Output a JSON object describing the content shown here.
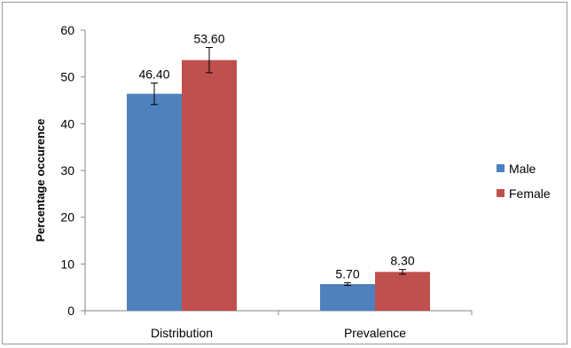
{
  "chart_data": {
    "type": "bar",
    "categories": [
      "Distribution",
      "Prevalence"
    ],
    "series": [
      {
        "name": "Male",
        "values": [
          46.4,
          5.7
        ],
        "labels": [
          "46.40",
          "5.70"
        ],
        "errors": [
          2.3,
          0.3
        ],
        "color": "#4f81bd"
      },
      {
        "name": "Female",
        "values": [
          53.6,
          8.3
        ],
        "labels": [
          "53.60",
          "8.30"
        ],
        "errors": [
          2.7,
          0.5
        ],
        "color": "#c0504d"
      }
    ],
    "title": "",
    "xlabel": "",
    "ylabel": "Percentage occurence",
    "ylim": [
      0,
      60
    ],
    "yticks": [
      0,
      10,
      20,
      30,
      40,
      50,
      60
    ],
    "grid": false,
    "legend_position": "right",
    "error_bars": true
  }
}
